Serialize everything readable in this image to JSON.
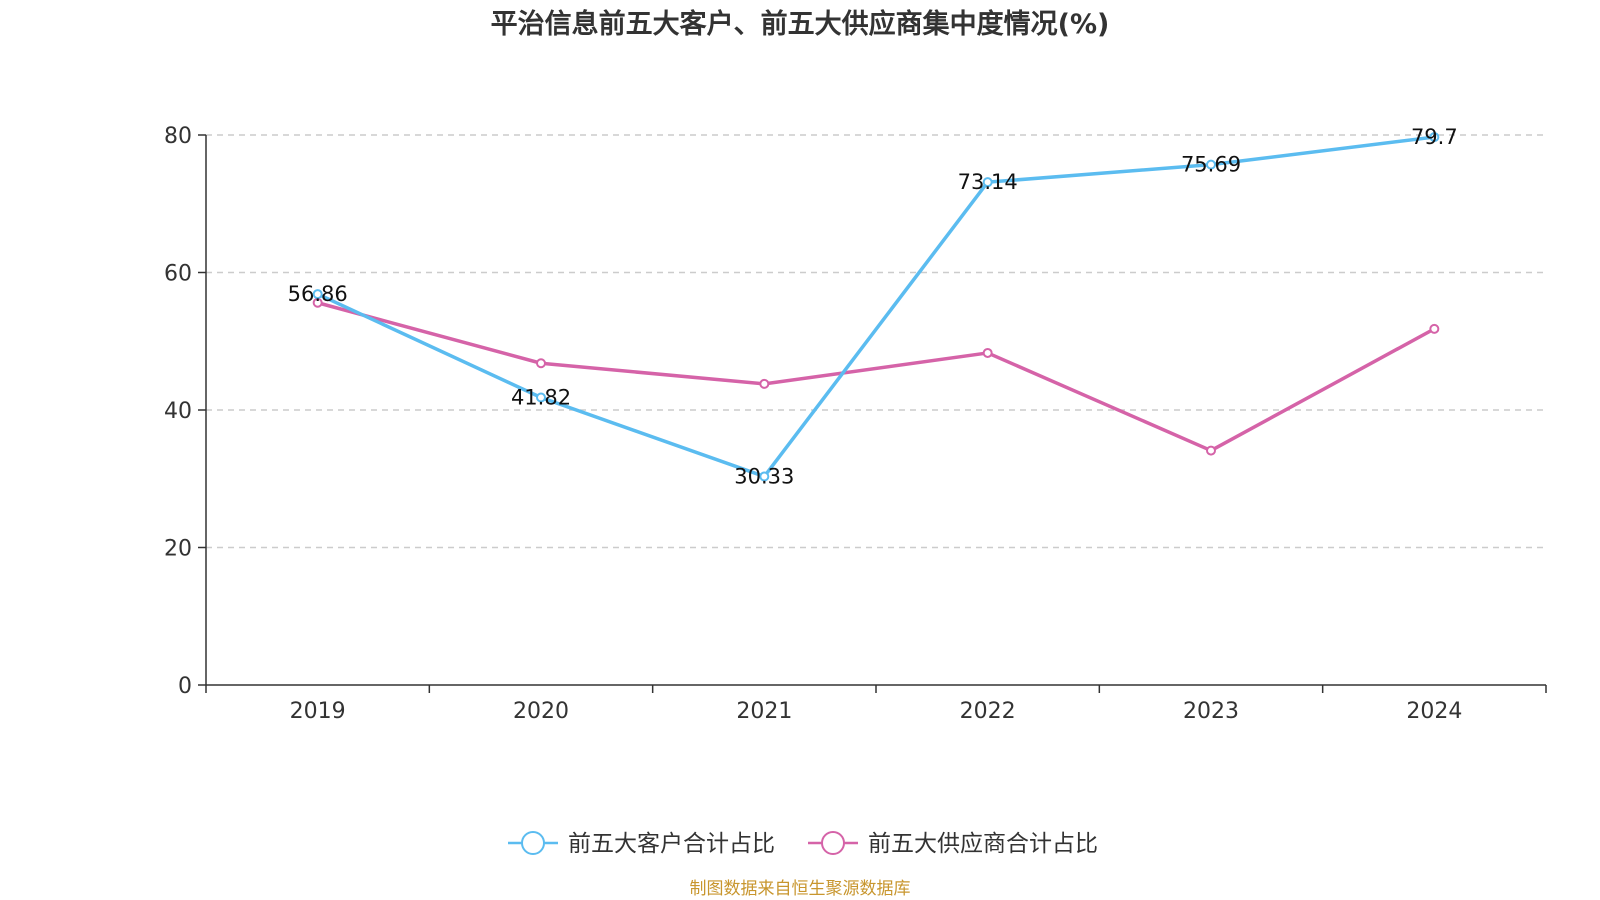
{
  "chart_data": {
    "type": "line",
    "title": "平治信息前五大客户、前五大供应商集中度情况(%)",
    "categories": [
      "2019",
      "2020",
      "2021",
      "2022",
      "2023",
      "2024"
    ],
    "ylim": [
      0,
      80
    ],
    "yticks": [
      0,
      20,
      40,
      60,
      80
    ],
    "grid": true,
    "legend_position": "bottom",
    "series": [
      {
        "name": "前五大客户合计占比",
        "color": "#5bbcf0",
        "values": [
          56.86,
          41.82,
          30.33,
          73.14,
          75.69,
          79.7
        ],
        "labels": [
          "56.86",
          "41.82",
          "30.33",
          "73.14",
          "75.69",
          "79.7"
        ]
      },
      {
        "name": "前五大供应商合计占比",
        "color": "#d563a8",
        "values": [
          55.6,
          46.8,
          43.8,
          48.3,
          34.1,
          51.8
        ],
        "labels": [
          "",
          "",
          "",
          "",
          "",
          ""
        ]
      }
    ],
    "source": "制图数据来自恒生聚源数据库"
  }
}
